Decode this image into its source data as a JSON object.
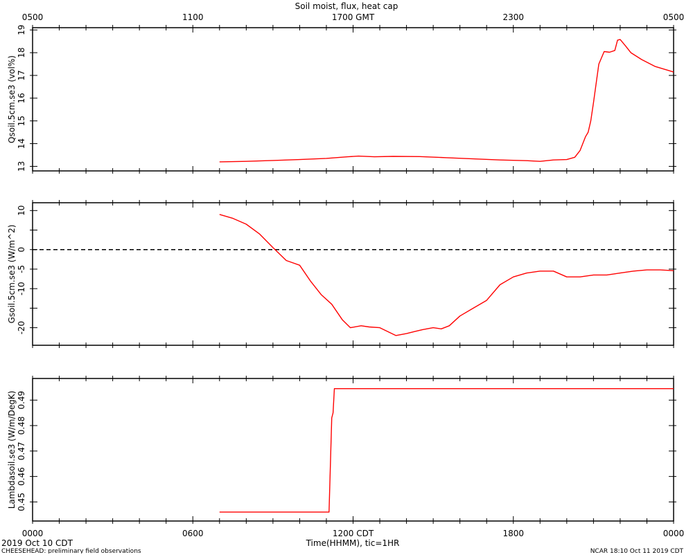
{
  "chart_data": {
    "type": "line",
    "title": "Soil moist, flux, heat cap",
    "top_axis": {
      "tick_labels": [
        "0500",
        "1100",
        "1700 GMT",
        "2300",
        "0500"
      ],
      "tick_hours": [
        0,
        6,
        12,
        18,
        24
      ]
    },
    "bottom_axis": {
      "tick_labels": [
        "0000",
        "0600",
        "1200 CDT",
        "1800",
        "0000"
      ],
      "tick_hours": [
        0,
        6,
        12,
        18,
        24
      ],
      "xlabel": "Time(HHMM), tic=1HR",
      "xlim": [
        0,
        24
      ]
    },
    "footer": {
      "left_date": "2019 Oct 10 CDT",
      "left_note": "CHEESEHEAD: preliminary field observations",
      "right_note": "NCAR 18:10 Oct 11 2019 CDT"
    },
    "panels": [
      {
        "id": "qsoil",
        "ylabel": "Qsoil.5cm.se3 (vol%)",
        "ylim": [
          12.8,
          19.1
        ],
        "yticks": [
          13,
          14,
          15,
          16,
          17,
          18,
          19
        ],
        "ytick_labels": [
          "13",
          "14",
          "15",
          "16",
          "17",
          "18",
          "19"
        ],
        "reference_line": null,
        "series": [
          {
            "color": "#ff0000",
            "x": [
              7.0,
              8.0,
              9.0,
              10.0,
              11.0,
              11.8,
              12.2,
              12.8,
              13.5,
              14.5,
              15.5,
              16.5,
              17.5,
              18.5,
              19.0,
              19.5,
              20.0,
              20.3,
              20.5,
              20.7,
              20.8,
              20.9,
              21.0,
              21.2,
              21.4,
              21.6,
              21.8,
              21.9,
              22.0,
              22.2,
              22.4,
              22.8,
              23.3,
              24.0
            ],
            "y": [
              13.2,
              13.22,
              13.26,
              13.3,
              13.35,
              13.42,
              13.45,
              13.42,
              13.44,
              13.43,
              13.38,
              13.33,
              13.28,
              13.25,
              13.22,
              13.28,
              13.3,
              13.4,
              13.7,
              14.3,
              14.5,
              15.0,
              15.8,
              17.5,
              18.05,
              18.02,
              18.1,
              18.55,
              18.58,
              18.3,
              18.0,
              17.7,
              17.4,
              17.15
            ]
          }
        ]
      },
      {
        "id": "gsoil",
        "ylabel": "Gsoil.5cm.se3 (W/m^2)",
        "ylim": [
          -24.5,
          12
        ],
        "yticks": [
          10,
          5,
          0,
          -5,
          -10,
          -15,
          -20
        ],
        "ytick_labels": [
          "10",
          "",
          "0",
          "-5",
          "-10",
          "",
          "-20"
        ],
        "reference_line": 0,
        "series": [
          {
            "color": "#ff0000",
            "x": [
              7.0,
              7.5,
              8.0,
              8.5,
              9.0,
              9.5,
              10.0,
              10.4,
              10.8,
              11.2,
              11.6,
              11.9,
              12.3,
              12.6,
              13.0,
              13.3,
              13.6,
              14.0,
              14.3,
              14.6,
              15.0,
              15.3,
              15.6,
              16.0,
              16.5,
              17.0,
              17.5,
              18.0,
              18.5,
              19.0,
              19.5,
              20.0,
              20.5,
              21.0,
              21.5,
              22.0,
              22.5,
              23.0,
              23.5,
              24.0
            ],
            "y": [
              9.0,
              8.0,
              6.5,
              4.0,
              0.5,
              -2.8,
              -4.0,
              -8.0,
              -11.5,
              -14.0,
              -18.0,
              -20.0,
              -19.5,
              -19.8,
              -20.0,
              -21.0,
              -22.0,
              -21.5,
              -21.0,
              -20.5,
              -20.0,
              -20.3,
              -19.5,
              -17.0,
              -15.0,
              -13.0,
              -9.0,
              -7.0,
              -6.0,
              -5.5,
              -5.5,
              -7.0,
              -7.0,
              -6.5,
              -6.5,
              -6.0,
              -5.5,
              -5.2,
              -5.2,
              -5.4
            ]
          }
        ]
      },
      {
        "id": "lambdasoil",
        "ylabel": "Lambdasoil.se3 (W/m/DegK)",
        "ylim": [
          0.4425,
          0.4985
        ],
        "yticks": [
          0.45,
          0.46,
          0.47,
          0.48,
          0.49
        ],
        "ytick_labels": [
          "0.45",
          "0.46",
          "0.47",
          "0.48",
          "0.49"
        ],
        "reference_line": null,
        "series": [
          {
            "color": "#ff0000",
            "x": [
              7.0,
              11.1,
              11.2,
              11.25,
              11.3,
              24.0
            ],
            "y": [
              0.446,
              0.446,
              0.483,
              0.485,
              0.4945,
              0.4945
            ]
          }
        ]
      }
    ]
  }
}
